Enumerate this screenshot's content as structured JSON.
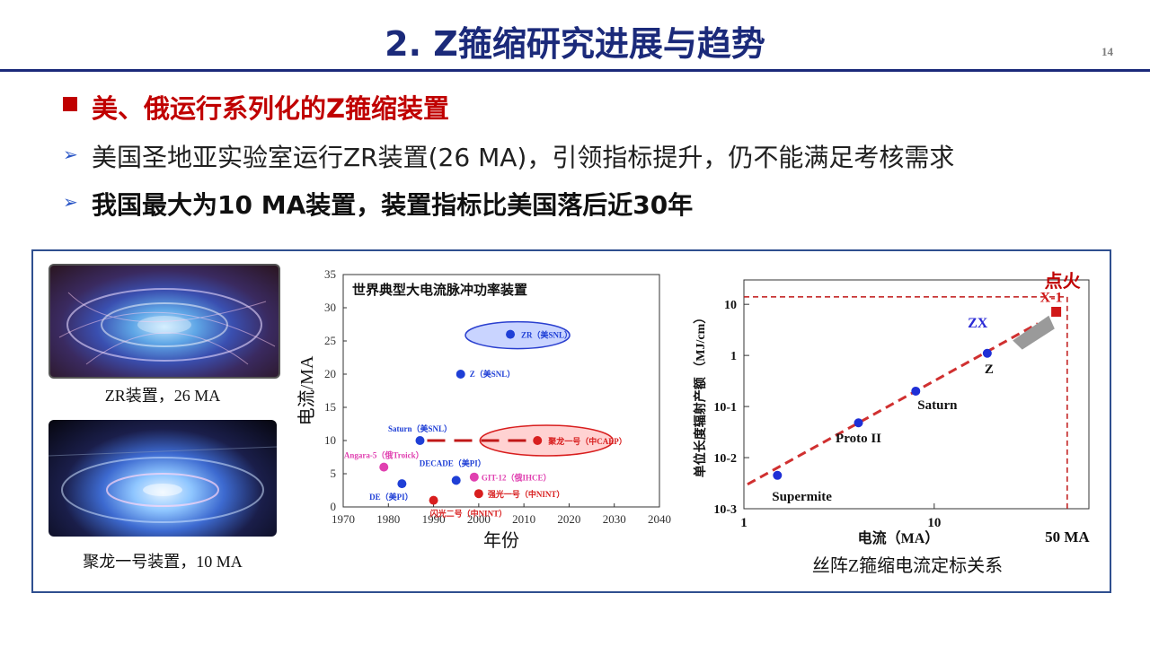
{
  "slide": {
    "title": "2. Z箍缩研究进展与趋势",
    "page_number": "14",
    "heading": "美、俄运行系列化的Z箍缩装置",
    "bullets": [
      "美国圣地亚实验室运行ZR装置(26 MA)，引领指标提升，仍不能满足考核需求",
      "我国最大为10 MA装置，装置指标比美国落后近30年"
    ]
  },
  "photos": [
    {
      "caption": "ZR装置，26 MA"
    },
    {
      "caption": "聚龙一号装置，10 MA"
    }
  ],
  "chart_data": [
    {
      "type": "scatter",
      "title": "世界典型大电流脉冲功率装置",
      "xlabel": "年份",
      "ylabel": "电流/MA",
      "xlim": [
        1970,
        2040
      ],
      "ylim": [
        0,
        35
      ],
      "xticks": [
        1970,
        1980,
        1990,
        2000,
        2010,
        2020,
        2030,
        2040
      ],
      "yticks": [
        0,
        5,
        10,
        15,
        20,
        25,
        30,
        35
      ],
      "points": [
        {
          "label": "ZR（美SNL）",
          "x": 2007,
          "y": 26,
          "color": "#1f3fd6"
        },
        {
          "label": "Z（美SNL）",
          "x": 1996,
          "y": 20,
          "color": "#1f3fd6"
        },
        {
          "label": "Saturn（美SNL）",
          "x": 1987,
          "y": 10,
          "color": "#1f3fd6"
        },
        {
          "label": "聚龙一号（中CAEP）",
          "x": 2013,
          "y": 10,
          "color": "#d81e1e"
        },
        {
          "label": "Angara-5（俄Troick）",
          "x": 1979,
          "y": 6,
          "color": "#e040b0"
        },
        {
          "label": "DECADE（美PI）",
          "x": 1995,
          "y": 4,
          "color": "#1f3fd6"
        },
        {
          "label": "GIT-12（俄IHCE）",
          "x": 1999,
          "y": 4.5,
          "color": "#e040b0"
        },
        {
          "label": "DE（美PI）",
          "x": 1983,
          "y": 3.5,
          "color": "#1f3fd6"
        },
        {
          "label": "强光一号（中NINT）",
          "x": 2000,
          "y": 2,
          "color": "#d81e1e"
        },
        {
          "label": "闪光二号（中NINT）",
          "x": 1990,
          "y": 1,
          "color": "#d81e1e"
        }
      ]
    },
    {
      "type": "line",
      "title": "丝阵Z箍缩电流定标关系",
      "xlabel": "电流（MA）",
      "ylabel": "单位长度辐射产额 （MJ/cm）",
      "x_scale": "log",
      "y_scale": "log",
      "xlim": [
        1,
        65
      ],
      "ylim": [
        0.001,
        30
      ],
      "xtick_labels": [
        "1",
        "10"
      ],
      "ytick_labels": [
        "10-3",
        "10-2",
        "10-1",
        "1",
        "10"
      ],
      "points": [
        {
          "label": "Supermite",
          "x": 1.5,
          "y": 0.0045
        },
        {
          "label": "Proto II",
          "x": 4,
          "y": 0.048
        },
        {
          "label": "Saturn",
          "x": 8,
          "y": 0.2
        },
        {
          "label": "Z",
          "x": 19,
          "y": 1.1
        }
      ],
      "annotations": {
        "zx": "ZX",
        "x1": "X-1",
        "ignition": "点火",
        "current_marker": "50 MA",
        "current_marker_value": 50,
        "ignition_yield": 14
      },
      "trend_color": "#d03030"
    }
  ]
}
